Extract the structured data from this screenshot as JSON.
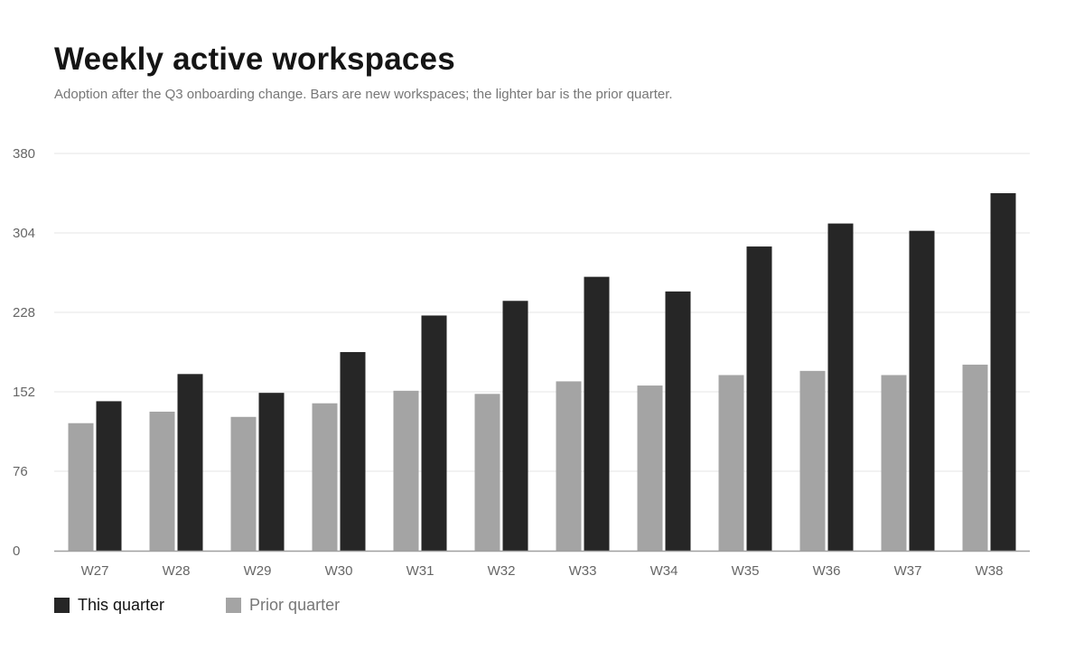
{
  "chart_data": {
    "type": "bar",
    "title": "Weekly active workspaces",
    "subtitle": "Adoption after the Q3 onboarding change. Bars are new workspaces; the lighter bar is the prior quarter.",
    "categories": [
      "W27",
      "W28",
      "W29",
      "W30",
      "W31",
      "W32",
      "W33",
      "W34",
      "W35",
      "W36",
      "W37",
      "W38"
    ],
    "series": [
      {
        "name": "Prior quarter",
        "color": "#a4a4a4",
        "values": [
          122,
          133,
          128,
          141,
          153,
          150,
          162,
          158,
          168,
          172,
          168,
          178
        ]
      },
      {
        "name": "This quarter",
        "color": "#262626",
        "values": [
          143,
          169,
          151,
          190,
          225,
          239,
          262,
          248,
          291,
          313,
          306,
          342
        ]
      }
    ],
    "ylim": [
      0,
      380
    ],
    "yticks": [
      0,
      76,
      152,
      228,
      304,
      380
    ],
    "grid": true,
    "legend_position": "bottom-left",
    "xlabel": "",
    "ylabel": ""
  }
}
